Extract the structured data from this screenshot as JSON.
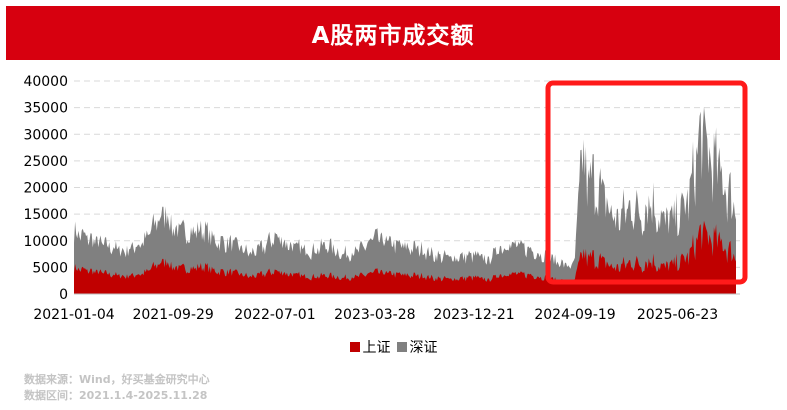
{
  "title": "A股两市成交额",
  "legend": {
    "sh_label": "上证",
    "sz_label": "深证"
  },
  "source": {
    "line1": "数据来源：Wind，好买基金研究中心",
    "line2": "数据区间：2021.1.4-2025.11.28"
  },
  "colors": {
    "brand_red": "#d7000f",
    "shanghai": "#c00000",
    "shenzhen": "#808080",
    "highlight": "#ff1a1a"
  },
  "chart_data": {
    "type": "area",
    "stacked": true,
    "x_ticks": [
      "2021-01-04",
      "2021-09-29",
      "2022-07-01",
      "2023-03-28",
      "2023-12-21",
      "2024-09-19",
      "2025-06-23"
    ],
    "y_ticks": [
      0,
      5000,
      10000,
      15000,
      20000,
      25000,
      30000,
      35000,
      40000
    ],
    "ylim": [
      0,
      40000
    ],
    "grid": "horizontal dashed",
    "legend_position": "bottom",
    "highlight_range": [
      "2024-09-19",
      "2025-11-28"
    ],
    "x": [
      "2021-01-04",
      "2021-03-15",
      "2021-05-20",
      "2021-07-15",
      "2021-08-15",
      "2021-09-10",
      "2021-09-29",
      "2021-11-15",
      "2021-12-20",
      "2022-01-20",
      "2022-03-15",
      "2022-04-25",
      "2022-05-30",
      "2022-07-01",
      "2022-08-20",
      "2022-10-10",
      "2022-11-20",
      "2022-12-30",
      "2023-02-15",
      "2023-03-28",
      "2023-05-10",
      "2023-06-20",
      "2023-08-01",
      "2023-09-10",
      "2023-10-25",
      "2023-12-21",
      "2024-01-31",
      "2024-02-20",
      "2024-03-20",
      "2024-05-20",
      "2024-07-15",
      "2024-09-10",
      "2024-09-19",
      "2024-10-08",
      "2024-10-25",
      "2024-11-08",
      "2024-12-10",
      "2025-01-06",
      "2025-02-20",
      "2025-03-20",
      "2025-04-08",
      "2025-05-15",
      "2025-06-23",
      "2025-07-25",
      "2025-08-25",
      "2025-09-15",
      "2025-10-20",
      "2025-11-28"
    ],
    "series": [
      {
        "name": "上证",
        "values": [
          4800,
          4000,
          3300,
          3900,
          5500,
          6200,
          5000,
          4700,
          5200,
          4300,
          4000,
          3200,
          3700,
          4300,
          3600,
          3200,
          3500,
          3000,
          3300,
          4100,
          3800,
          3500,
          3400,
          2900,
          2800,
          3100,
          2600,
          3400,
          3800,
          3600,
          2800,
          2200,
          2800,
          7500,
          6500,
          6800,
          5800,
          4800,
          6000,
          5500,
          6500,
          5000,
          5700,
          7200,
          11500,
          10500,
          9500,
          7000
        ]
      },
      {
        "name": "深证",
        "values": [
          6800,
          5500,
          4700,
          6000,
          8200,
          9200,
          7200,
          6800,
          7000,
          5700,
          5300,
          4300,
          5000,
          6500,
          5200,
          4900,
          5700,
          4400,
          4800,
          6400,
          5700,
          5200,
          5000,
          4200,
          4000,
          4100,
          3700,
          4900,
          5500,
          4800,
          3800,
          2800,
          4000,
          19000,
          13500,
          15000,
          11500,
          9000,
          10500,
          9500,
          11500,
          8500,
          8500,
          11000,
          18500,
          15500,
          12500,
          9000
        ]
      }
    ]
  }
}
